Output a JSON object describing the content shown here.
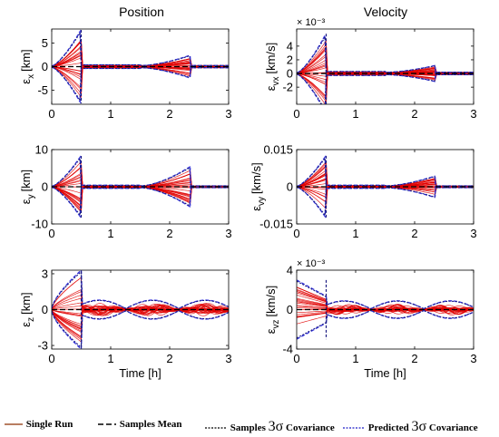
{
  "figure": {
    "col_titles": [
      "Position",
      "Velocity"
    ]
  },
  "legend": {
    "items": [
      {
        "label": "Single Run",
        "color": "#a0522d",
        "style": "solid"
      },
      {
        "label": "Samples Mean",
        "color": "#000000",
        "style": "dashed"
      },
      {
        "label": "Samples",
        "color": "#000000",
        "style": "dotted",
        "sigma_label": "3σ",
        "suffix": "Covariance"
      },
      {
        "label": "Predicted",
        "color": "#1f1fc8",
        "style": "dotted",
        "sigma_label": "3σ",
        "suffix": "Covariance"
      }
    ]
  },
  "colors": {
    "runs": "#e00000",
    "mean": "#000000",
    "samples_cov": "#1a1a80",
    "predicted_cov": "#3333dd"
  },
  "chart_data": [
    {
      "id": "px",
      "type": "line",
      "title": "Position",
      "ylabel": "εx [km]",
      "ylabel_main": "ε",
      "ylabel_sub": "x",
      "ylabel_unit": "[km]",
      "xlabel": "",
      "xlim": [
        0,
        3
      ],
      "ylim": [
        -8,
        8
      ],
      "xticks": [
        0,
        1,
        2,
        3
      ],
      "yticks": [
        -5,
        0,
        5
      ],
      "ytick_labels": [
        "-5",
        "0",
        "5"
      ],
      "exponent_label": "",
      "peak_sigma": 7.8,
      "second_peak": 2.2,
      "peak_time": 0.5,
      "second_time": 2.35
    },
    {
      "id": "vx",
      "type": "line",
      "title": "Velocity",
      "ylabel": "εvx [km/s]",
      "ylabel_main": "ε",
      "ylabel_sub": "vx",
      "ylabel_unit": "[km/s]",
      "xlabel": "",
      "xlim": [
        0,
        3
      ],
      "ylim": [
        -0.0045,
        0.0065
      ],
      "xticks": [
        0,
        1,
        2,
        3
      ],
      "yticks": [
        -0.002,
        0,
        0.002,
        0.004
      ],
      "ytick_labels": [
        "-2",
        "0",
        "2",
        "4"
      ],
      "exponent_label": "× 10⁻³",
      "peak_sigma": 0.0058,
      "second_peak": 0.001,
      "peak_time": 0.5,
      "second_time": 2.35
    },
    {
      "id": "py",
      "type": "line",
      "title": "",
      "ylabel": "εy [km]",
      "ylabel_main": "ε",
      "ylabel_sub": "y",
      "ylabel_unit": "[km]",
      "xlabel": "",
      "xlim": [
        0,
        3
      ],
      "ylim": [
        -10,
        10
      ],
      "xticks": [
        0,
        1,
        2,
        3
      ],
      "yticks": [
        -10,
        0,
        10
      ],
      "ytick_labels": [
        "-10",
        "0",
        "10"
      ],
      "exponent_label": "",
      "peak_sigma": 8.3,
      "second_peak": 5.2,
      "peak_time": 0.5,
      "second_time": 2.35
    },
    {
      "id": "vy",
      "type": "line",
      "title": "",
      "ylabel": "εvy [km/s]",
      "ylabel_main": "ε",
      "ylabel_sub": "vy",
      "ylabel_unit": "[km/s]",
      "xlabel": "",
      "xlim": [
        0,
        3
      ],
      "ylim": [
        -0.015,
        0.015
      ],
      "xticks": [
        0,
        1,
        2,
        3
      ],
      "yticks": [
        -0.015,
        0,
        0.015
      ],
      "ytick_labels": [
        "-0.015",
        "0",
        "0.015"
      ],
      "exponent_label": "",
      "peak_sigma": 0.0125,
      "second_peak": 0.004,
      "peak_time": 0.5,
      "second_time": 2.35
    },
    {
      "id": "pz",
      "type": "line",
      "title": "",
      "ylabel": "εz [km]",
      "ylabel_main": "ε",
      "ylabel_sub": "z",
      "ylabel_unit": "[km]",
      "xlabel": "Time [h]",
      "xlim": [
        0,
        3
      ],
      "ylim": [
        -3.3,
        3.3
      ],
      "xticks": [
        0,
        1,
        2,
        3
      ],
      "yticks": [
        -3,
        0,
        3
      ],
      "ytick_labels": [
        "-3",
        "0",
        "3"
      ],
      "exponent_label": "",
      "peak_sigma": 3.2,
      "second_peak": 0.7,
      "peak_time": 0.5,
      "second_time": 0,
      "oscillating": true
    },
    {
      "id": "vz",
      "type": "line",
      "title": "",
      "ylabel": "εvz [km/s]",
      "ylabel_main": "ε",
      "ylabel_sub": "vz",
      "ylabel_unit": "[km/s]",
      "xlabel": "Time [h]",
      "xlim": [
        0,
        3
      ],
      "ylim": [
        -0.004,
        0.004
      ],
      "xticks": [
        0,
        1,
        2,
        3
      ],
      "yticks": [
        -0.004,
        0,
        0.004
      ],
      "ytick_labels": [
        "-4",
        "0",
        "4"
      ],
      "exponent_label": "× 10⁻³",
      "peak_sigma": 0.003,
      "second_peak": 0.0008,
      "peak_time": 0.5,
      "second_time": 0,
      "oscillating": true,
      "start_peak": true
    }
  ]
}
